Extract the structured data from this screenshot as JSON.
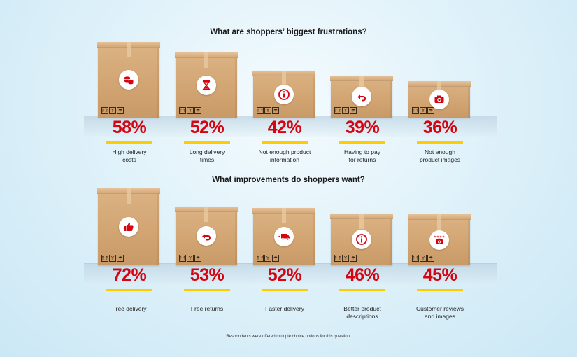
{
  "chart_data": [
    {
      "type": "bar",
      "title": "What are shoppers’ biggest frustrations?",
      "categories": [
        "High delivery costs",
        "Long delivery times",
        "Not enough product information",
        "Having to pay for returns",
        "Not enough product images"
      ],
      "label_lines": [
        [
          "High delivery",
          "costs"
        ],
        [
          "Long delivery",
          "times"
        ],
        [
          "Not enough product",
          "information"
        ],
        [
          "Having to pay",
          "for returns"
        ],
        [
          "Not enough",
          "product images"
        ]
      ],
      "values": [
        58,
        52,
        42,
        39,
        36
      ],
      "value_labels": [
        "58%",
        "52%",
        "42%",
        "39%",
        "36%"
      ],
      "icons": [
        "coins-icon",
        "hourglass-icon",
        "info-icon",
        "return-arrow-icon",
        "camera-icon"
      ],
      "unit": "%"
    },
    {
      "type": "bar",
      "title": "What improvements do shoppers want?",
      "categories": [
        "Free delivery",
        "Free returns",
        "Faster delivery",
        "Better product descriptions",
        "Customer reviews and images"
      ],
      "label_lines": [
        [
          "Free delivery"
        ],
        [
          "Free returns"
        ],
        [
          "Faster delivery"
        ],
        [
          "Better product",
          "descriptions"
        ],
        [
          "Customer reviews",
          "and images"
        ]
      ],
      "values": [
        72,
        53,
        52,
        46,
        45
      ],
      "value_labels": [
        "72%",
        "53%",
        "52%",
        "46%",
        "45%"
      ],
      "icons": [
        "thumbs-up-icon",
        "return-arrow-icon",
        "delivery-truck-icon",
        "info-icon",
        "star-camera-icon"
      ],
      "unit": "%"
    }
  ],
  "footnote": "Respondents were offered multiple choice options for this question.",
  "colors": {
    "accent": "#d40511",
    "highlight": "#ffcc00",
    "box": "#d2a573"
  }
}
